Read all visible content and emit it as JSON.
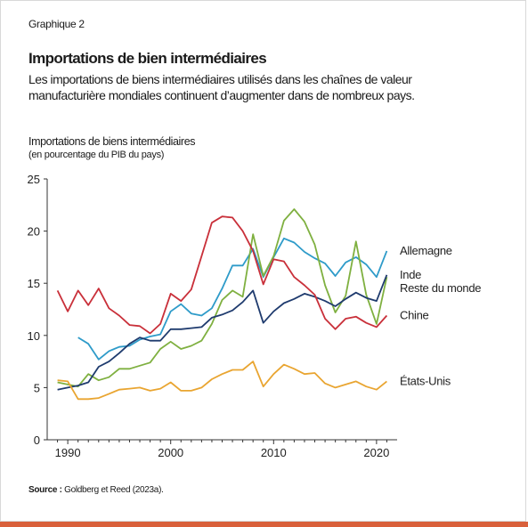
{
  "graph_number": "Graphique  2",
  "title": "Importations de bien intermédiaires",
  "subtitle_line1": "Les importations de biens intermédiaires utilisés dans les chaînes de valeur",
  "subtitle_line2": "manufacturière mondiales continuent d’augmenter dans de nombreux pays.",
  "source_label": "Source :",
  "source_text": "Goldberg et Reed (2023a).",
  "chart_data": {
    "type": "line",
    "ylabel": "Importations de biens intermédiaires",
    "ylabel_unit": "(en pourcentage du PIB du pays)",
    "xlim": [
      1988,
      2022
    ],
    "ylim": [
      0,
      25
    ],
    "yticks": [
      0,
      5,
      10,
      15,
      20,
      25
    ],
    "xticks": [
      1990,
      2000,
      2010,
      2020
    ],
    "grid": false,
    "legend": "end-of-line labels (right)",
    "series": [
      {
        "name": "Allemagne",
        "color": "#2e9bc9",
        "points": [
          [
            1991,
            9.8
          ],
          [
            1992,
            9.2
          ],
          [
            1993,
            7.7
          ],
          [
            1994,
            8.5
          ],
          [
            1995,
            8.9
          ],
          [
            1996,
            9.0
          ],
          [
            1997,
            9.6
          ],
          [
            1998,
            9.9
          ],
          [
            1999,
            10.1
          ],
          [
            2000,
            12.3
          ],
          [
            2001,
            13.0
          ],
          [
            2002,
            12.1
          ],
          [
            2003,
            11.9
          ],
          [
            2004,
            12.6
          ],
          [
            2005,
            14.5
          ],
          [
            2006,
            16.7
          ],
          [
            2007,
            16.7
          ],
          [
            2008,
            18.3
          ],
          [
            2009,
            15.6
          ],
          [
            2010,
            17.5
          ],
          [
            2011,
            19.3
          ],
          [
            2012,
            18.9
          ],
          [
            2013,
            18.0
          ],
          [
            2014,
            17.4
          ],
          [
            2015,
            16.9
          ],
          [
            2016,
            15.7
          ],
          [
            2017,
            17.0
          ],
          [
            2018,
            17.5
          ],
          [
            2019,
            16.8
          ],
          [
            2020,
            15.6
          ],
          [
            2021,
            18.1
          ]
        ]
      },
      {
        "name": "Reste du monde",
        "color": "#7fb040",
        "points": [
          [
            1989,
            5.5
          ],
          [
            1990,
            5.3
          ],
          [
            1991,
            5.1
          ],
          [
            1992,
            6.3
          ],
          [
            1993,
            5.7
          ],
          [
            1994,
            6.0
          ],
          [
            1995,
            6.8
          ],
          [
            1996,
            6.8
          ],
          [
            1997,
            7.1
          ],
          [
            1998,
            7.4
          ],
          [
            1999,
            8.7
          ],
          [
            2000,
            9.4
          ],
          [
            2001,
            8.7
          ],
          [
            2002,
            9.0
          ],
          [
            2003,
            9.5
          ],
          [
            2004,
            11.1
          ],
          [
            2005,
            13.4
          ],
          [
            2006,
            14.3
          ],
          [
            2007,
            13.7
          ],
          [
            2008,
            19.7
          ],
          [
            2009,
            15.7
          ],
          [
            2010,
            17.6
          ],
          [
            2011,
            21.0
          ],
          [
            2012,
            22.1
          ],
          [
            2013,
            20.9
          ],
          [
            2014,
            18.7
          ],
          [
            2015,
            14.8
          ],
          [
            2016,
            12.2
          ],
          [
            2017,
            13.8
          ],
          [
            2018,
            19.0
          ],
          [
            2019,
            13.9
          ],
          [
            2020,
            11.1
          ],
          [
            2021,
            15.6
          ]
        ]
      },
      {
        "name": "Inde",
        "color": "#1f3b6e",
        "points": [
          [
            1989,
            4.8
          ],
          [
            1990,
            5.0
          ],
          [
            1991,
            5.2
          ],
          [
            1992,
            5.5
          ],
          [
            1993,
            7.0
          ],
          [
            1994,
            7.5
          ],
          [
            1995,
            8.3
          ],
          [
            1996,
            9.2
          ],
          [
            1997,
            9.8
          ],
          [
            1998,
            9.5
          ],
          [
            1999,
            9.5
          ],
          [
            2000,
            10.6
          ],
          [
            2001,
            10.6
          ],
          [
            2002,
            10.7
          ],
          [
            2003,
            10.8
          ],
          [
            2004,
            11.7
          ],
          [
            2005,
            12.0
          ],
          [
            2006,
            12.4
          ],
          [
            2007,
            13.2
          ],
          [
            2008,
            14.3
          ],
          [
            2009,
            11.2
          ],
          [
            2010,
            12.3
          ],
          [
            2011,
            13.1
          ],
          [
            2012,
            13.5
          ],
          [
            2013,
            14.0
          ],
          [
            2014,
            13.7
          ],
          [
            2015,
            13.3
          ],
          [
            2016,
            12.8
          ],
          [
            2017,
            13.5
          ],
          [
            2018,
            14.1
          ],
          [
            2019,
            13.6
          ],
          [
            2020,
            13.3
          ],
          [
            2021,
            15.8
          ]
        ]
      },
      {
        "name": "Chine",
        "color": "#c9303a",
        "points": [
          [
            1989,
            14.3
          ],
          [
            1990,
            12.3
          ],
          [
            1991,
            14.3
          ],
          [
            1992,
            12.9
          ],
          [
            1993,
            14.5
          ],
          [
            1994,
            12.6
          ],
          [
            1995,
            11.9
          ],
          [
            1996,
            11.0
          ],
          [
            1997,
            10.9
          ],
          [
            1998,
            10.2
          ],
          [
            1999,
            11.1
          ],
          [
            2000,
            14.0
          ],
          [
            2001,
            13.3
          ],
          [
            2002,
            14.4
          ],
          [
            2003,
            17.6
          ],
          [
            2004,
            20.8
          ],
          [
            2005,
            21.4
          ],
          [
            2006,
            21.3
          ],
          [
            2007,
            20.0
          ],
          [
            2008,
            18.1
          ],
          [
            2009,
            14.9
          ],
          [
            2010,
            17.3
          ],
          [
            2011,
            17.1
          ],
          [
            2012,
            15.6
          ],
          [
            2013,
            14.8
          ],
          [
            2014,
            13.9
          ],
          [
            2015,
            11.6
          ],
          [
            2016,
            10.6
          ],
          [
            2017,
            11.6
          ],
          [
            2018,
            11.8
          ],
          [
            2019,
            11.2
          ],
          [
            2020,
            10.8
          ],
          [
            2021,
            11.9
          ]
        ]
      },
      {
        "name": "États-Unis",
        "color": "#e9a531",
        "points": [
          [
            1989,
            5.7
          ],
          [
            1990,
            5.6
          ],
          [
            1991,
            3.9
          ],
          [
            1992,
            3.9
          ],
          [
            1993,
            4.0
          ],
          [
            1994,
            4.4
          ],
          [
            1995,
            4.8
          ],
          [
            1996,
            4.9
          ],
          [
            1997,
            5.0
          ],
          [
            1998,
            4.7
          ],
          [
            1999,
            4.9
          ],
          [
            2000,
            5.5
          ],
          [
            2001,
            4.7
          ],
          [
            2002,
            4.7
          ],
          [
            2003,
            5.0
          ],
          [
            2004,
            5.8
          ],
          [
            2005,
            6.3
          ],
          [
            2006,
            6.7
          ],
          [
            2007,
            6.7
          ],
          [
            2008,
            7.5
          ],
          [
            2009,
            5.1
          ],
          [
            2010,
            6.3
          ],
          [
            2011,
            7.2
          ],
          [
            2012,
            6.8
          ],
          [
            2013,
            6.3
          ],
          [
            2014,
            6.4
          ],
          [
            2015,
            5.4
          ],
          [
            2016,
            5.0
          ],
          [
            2017,
            5.3
          ],
          [
            2018,
            5.6
          ],
          [
            2019,
            5.1
          ],
          [
            2020,
            4.8
          ],
          [
            2021,
            5.6
          ]
        ]
      }
    ]
  }
}
